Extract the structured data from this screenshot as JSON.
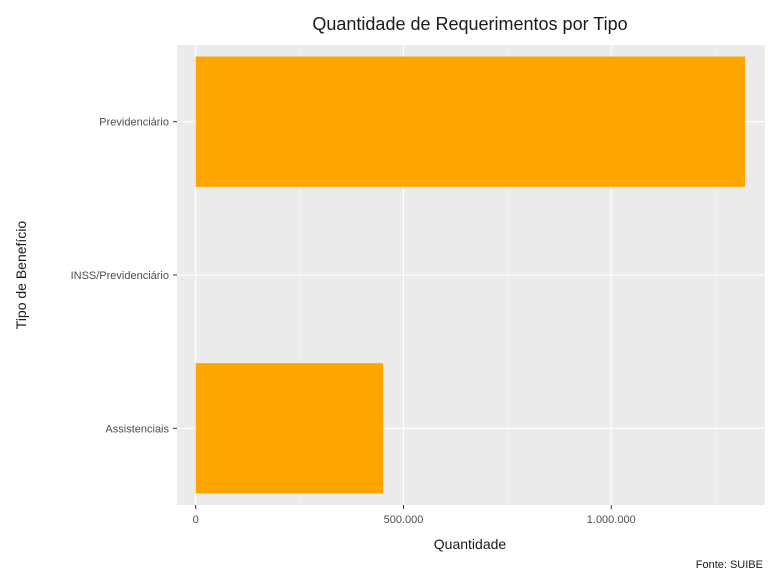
{
  "chart_data": {
    "type": "bar",
    "orientation": "horizontal",
    "title": "Quantidade de Requerimentos por Tipo",
    "xlabel": "Quantidade",
    "ylabel": "Tipo de Benefício",
    "caption": "Fonte: SUIBE",
    "categories": [
      "Previdenciário",
      "INSS/Previdenciário",
      "Assistenciais"
    ],
    "values": [
      1322000,
      0,
      451000
    ],
    "xlim": [
      -45000,
      1370000
    ],
    "xticks": [
      0,
      500000,
      1000000
    ],
    "xtick_labels": [
      "0",
      "500.000",
      "1.000.000"
    ],
    "grid": true,
    "legend": "none",
    "colors": {
      "bar": "#FFA500",
      "panel": "#EBEBEB",
      "grid_major": "#FFFFFF",
      "grid_minor": "#F5F5F5",
      "tick": "#333333"
    }
  }
}
